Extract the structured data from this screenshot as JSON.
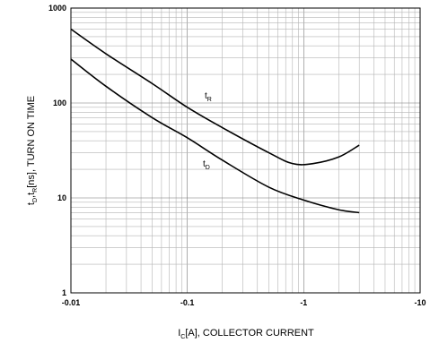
{
  "chart_data": {
    "type": "line",
    "xscale": "log",
    "yscale": "log",
    "xlim": [
      -0.01,
      -10
    ],
    "ylim": [
      1,
      1000
    ],
    "grid": true,
    "xticks": [
      "-0.01",
      "-0.1",
      "-1",
      "-10"
    ],
    "yticks": [
      "1",
      "10",
      "100",
      "1000"
    ],
    "xlabel": {
      "main": "I",
      "sub": "C",
      "rest": "[A], COLLECTOR CURRENT"
    },
    "ylabel": {
      "t1": "t",
      "sub1": "D",
      "t2": ",t",
      "sub2": "R",
      "rest": "[ns], TURN ON TIME"
    },
    "series": [
      {
        "name": "tR",
        "label": {
          "main": "t",
          "sub": "R"
        },
        "points": [
          [
            -0.01,
            600
          ],
          [
            -0.02,
            330
          ],
          [
            -0.05,
            160
          ],
          [
            -0.1,
            90
          ],
          [
            -0.2,
            55
          ],
          [
            -0.5,
            30
          ],
          [
            -0.8,
            23
          ],
          [
            -1.2,
            23
          ],
          [
            -2.0,
            27
          ],
          [
            -3.0,
            36
          ]
        ]
      },
      {
        "name": "tD",
        "label": {
          "main": "t",
          "sub": "D"
        },
        "points": [
          [
            -0.01,
            290
          ],
          [
            -0.02,
            150
          ],
          [
            -0.05,
            70
          ],
          [
            -0.1,
            43
          ],
          [
            -0.2,
            25
          ],
          [
            -0.5,
            13
          ],
          [
            -1.0,
            9.5
          ],
          [
            -2.0,
            7.5
          ],
          [
            -3.0,
            7
          ]
        ]
      }
    ]
  }
}
